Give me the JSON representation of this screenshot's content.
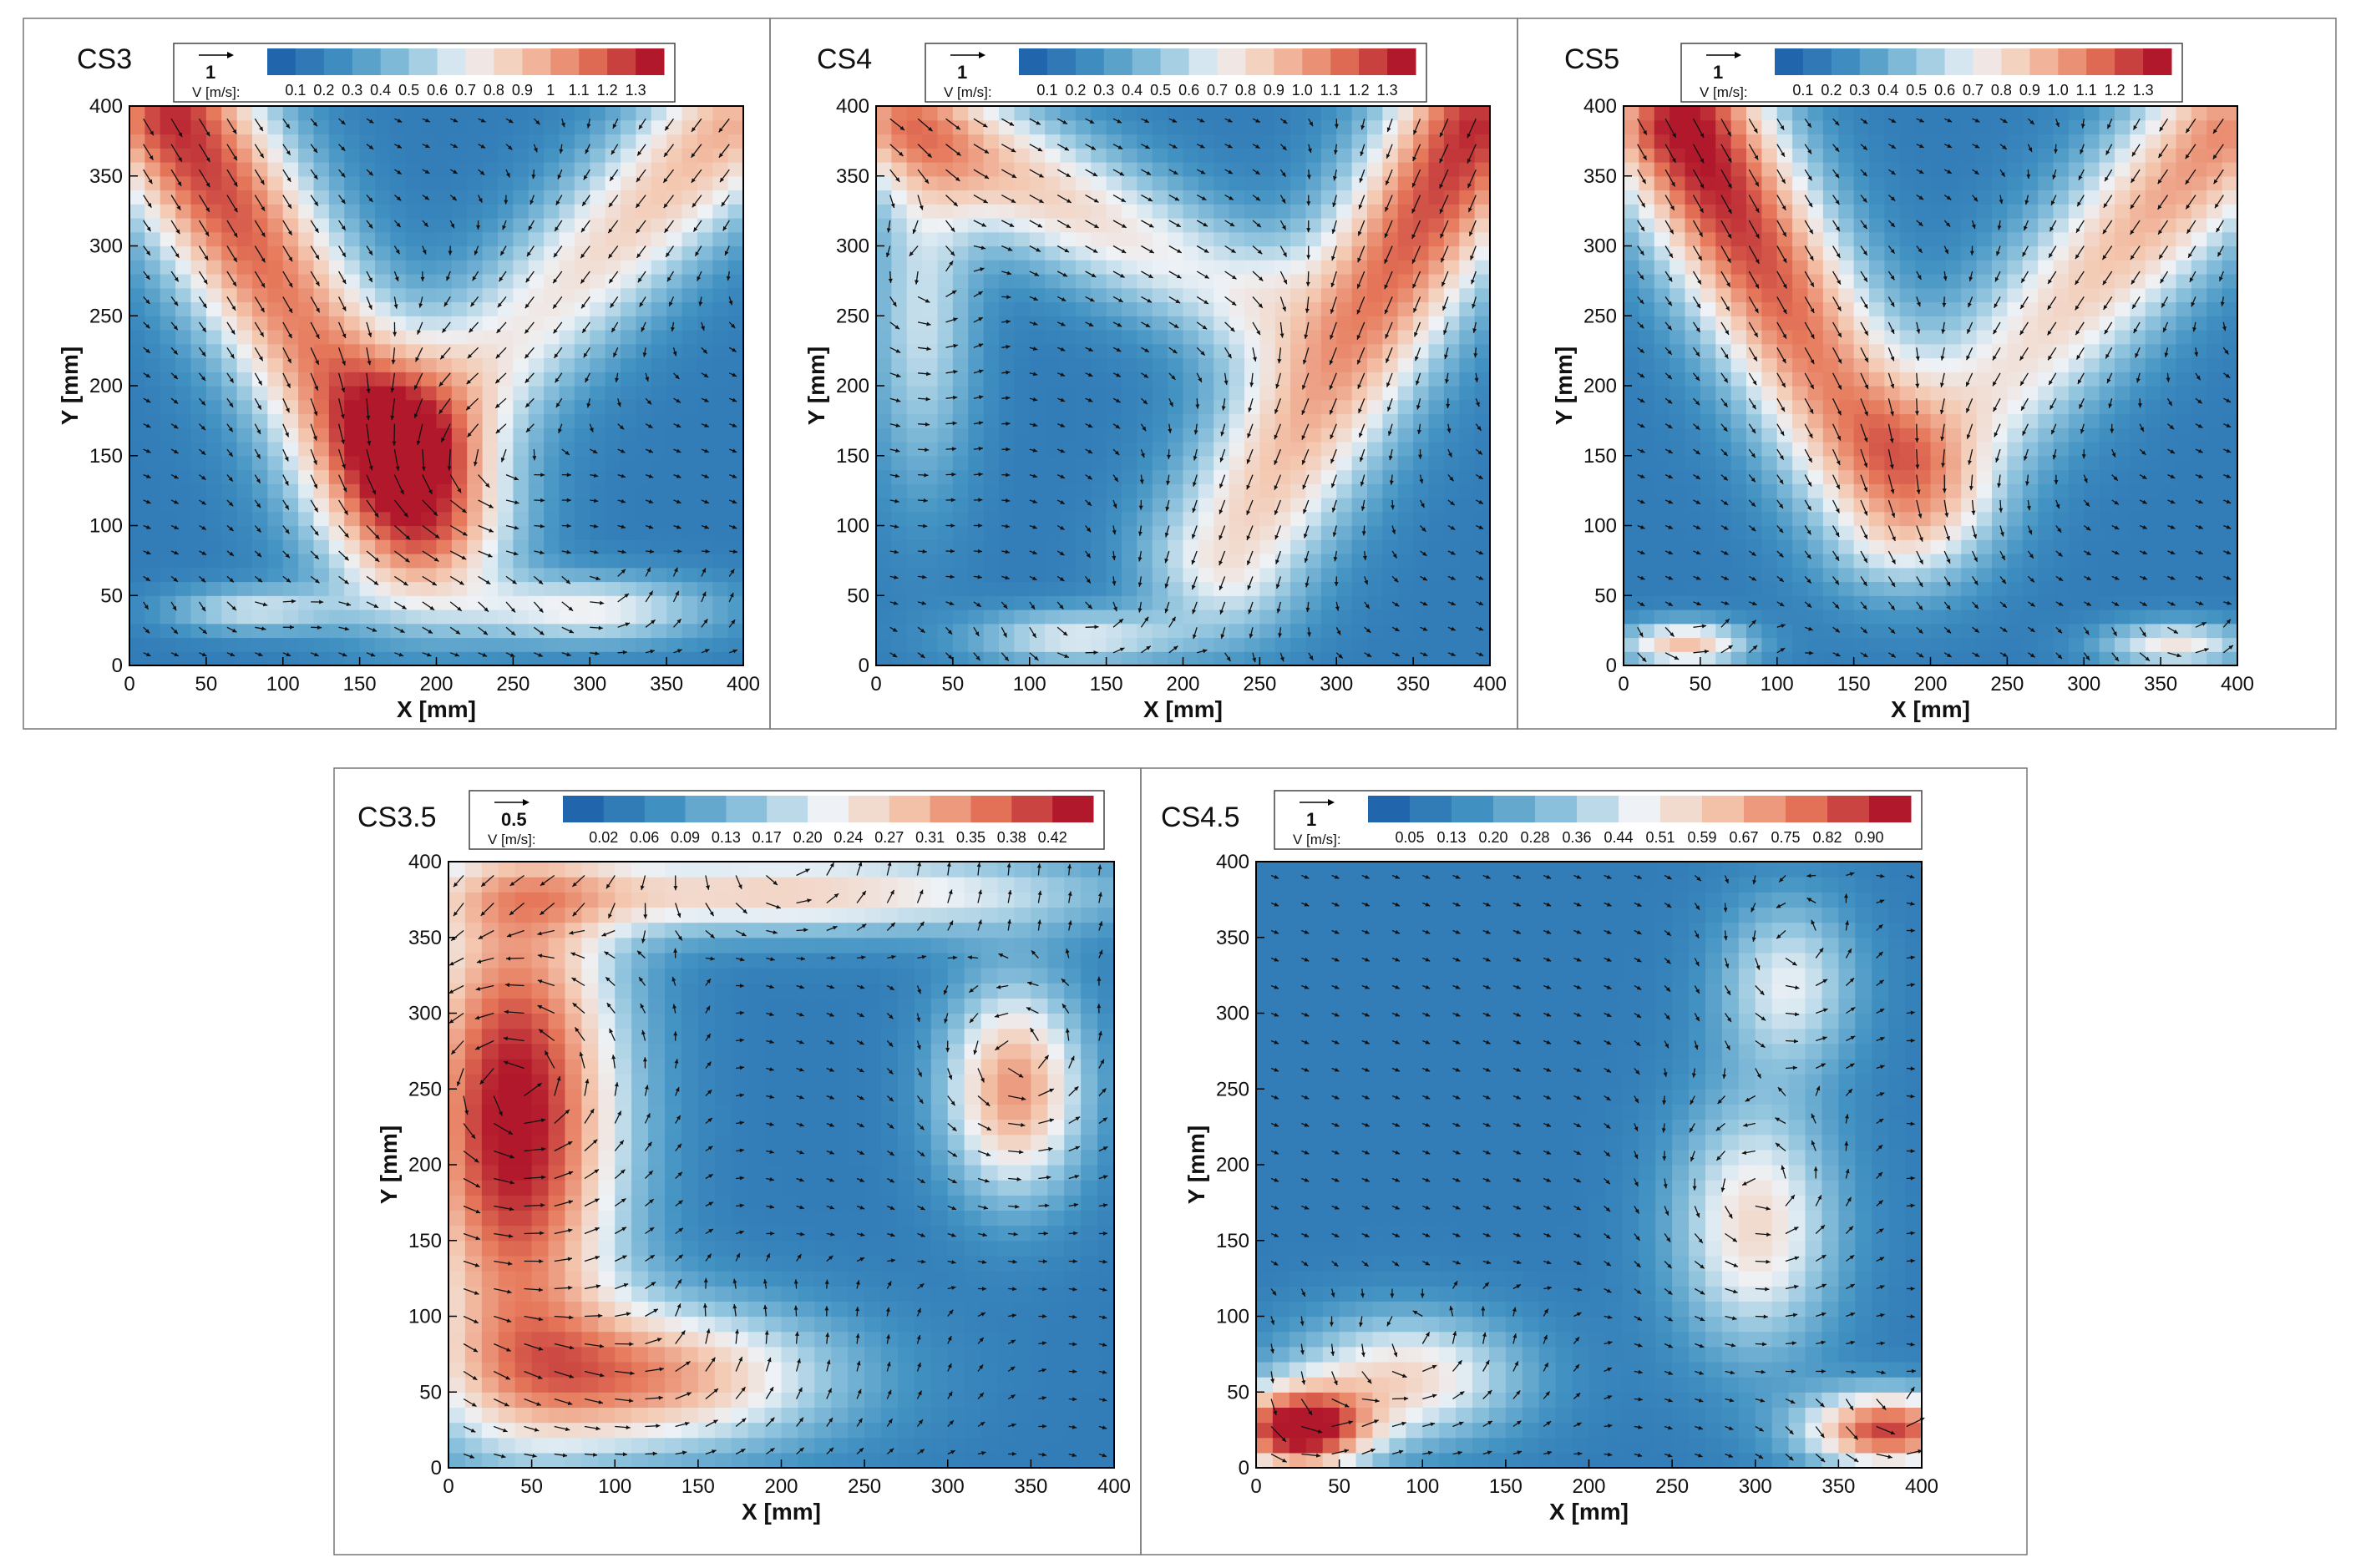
{
  "chart_data": [
    {
      "type": "heatmap",
      "title": "CS3",
      "xlabel": "X [mm]",
      "ylabel": "Y [mm]",
      "xlim": [
        0,
        400
      ],
      "ylim": [
        0,
        400
      ],
      "x_ticks": [
        "0",
        "50",
        "100",
        "150",
        "200",
        "250",
        "300",
        "350",
        "400"
      ],
      "y_ticks": [
        "0",
        "50",
        "100",
        "150",
        "200",
        "250",
        "300",
        "350",
        "400"
      ],
      "legend": {
        "vector_value": "1",
        "label": "V [m/s]:",
        "levels": [
          "0.1",
          "0.2",
          "0.3",
          "0.4",
          "0.5",
          "0.6",
          "0.7",
          "0.8",
          "0.9",
          "1",
          "1.1",
          "1.2",
          "1.3"
        ],
        "placement": "top"
      },
      "vmax": 1.3,
      "features": [
        {
          "kind": "jet",
          "x0": 30,
          "y0": 390,
          "x1": 190,
          "y1": 100,
          "width": 40,
          "peak": 1.15
        },
        {
          "kind": "jet",
          "x0": 390,
          "y0": 385,
          "x1": 200,
          "y1": 180,
          "width": 38,
          "peak": 0.8
        },
        {
          "kind": "blob",
          "x": 300,
          "y": 40,
          "sx": 60,
          "sy": 18,
          "peak": 0.55
        },
        {
          "kind": "blob",
          "x": 80,
          "y": 40,
          "sx": 40,
          "sy": 12,
          "peak": 0.45
        },
        {
          "kind": "blob",
          "x": 180,
          "y": 130,
          "sx": 45,
          "sy": 60,
          "peak": 0.55
        }
      ]
    },
    {
      "type": "heatmap",
      "title": "CS4",
      "xlabel": "X [mm]",
      "ylabel": "Y [mm]",
      "xlim": [
        0,
        400
      ],
      "ylim": [
        0,
        400
      ],
      "x_ticks": [
        "0",
        "50",
        "100",
        "150",
        "200",
        "250",
        "300",
        "350",
        "400"
      ],
      "y_ticks": [
        "0",
        "50",
        "100",
        "150",
        "200",
        "250",
        "300",
        "350",
        "400"
      ],
      "legend": {
        "vector_value": "1",
        "label": "V [m/s]:",
        "levels": [
          "0.1",
          "0.2",
          "0.3",
          "0.4",
          "0.5",
          "0.6",
          "0.7",
          "0.8",
          "0.9",
          "1.0",
          "1.1",
          "1.2",
          "1.3"
        ],
        "placement": "top"
      },
      "vmax": 1.3,
      "features": [
        {
          "kind": "jet",
          "x0": 20,
          "y0": 390,
          "x1": 230,
          "y1": 270,
          "width": 35,
          "peak": 0.85
        },
        {
          "kind": "jet",
          "x0": 390,
          "y0": 385,
          "x1": 230,
          "y1": 80,
          "width": 40,
          "peak": 1.15
        },
        {
          "kind": "blob",
          "x": 130,
          "y": 20,
          "sx": 50,
          "sy": 15,
          "peak": 0.5
        },
        {
          "kind": "blob",
          "x": 30,
          "y": 250,
          "sx": 25,
          "sy": 90,
          "peak": 0.45
        }
      ]
    },
    {
      "type": "heatmap",
      "title": "CS5",
      "xlabel": "X [mm]",
      "ylabel": "Y [mm]",
      "xlim": [
        0,
        400
      ],
      "ylim": [
        0,
        400
      ],
      "x_ticks": [
        "0",
        "50",
        "100",
        "150",
        "200",
        "250",
        "300",
        "350",
        "400"
      ],
      "y_ticks": [
        "0",
        "50",
        "100",
        "150",
        "200",
        "250",
        "300",
        "350",
        "400"
      ],
      "legend": {
        "vector_value": "1",
        "label": "V [m/s]:",
        "levels": [
          "0.1",
          "0.2",
          "0.3",
          "0.4",
          "0.5",
          "0.6",
          "0.7",
          "0.8",
          "0.9",
          "1.0",
          "1.1",
          "1.2",
          "1.3"
        ],
        "placement": "top"
      },
      "vmax": 1.3,
      "features": [
        {
          "kind": "jet",
          "x0": 40,
          "y0": 385,
          "x1": 180,
          "y1": 110,
          "width": 40,
          "peak": 1.25
        },
        {
          "kind": "jet",
          "x0": 390,
          "y0": 380,
          "x1": 210,
          "y1": 160,
          "width": 40,
          "peak": 0.9
        },
        {
          "kind": "blob",
          "x": 40,
          "y": 15,
          "sx": 30,
          "sy": 12,
          "peak": 0.75
        },
        {
          "kind": "blob",
          "x": 360,
          "y": 15,
          "sx": 35,
          "sy": 12,
          "peak": 0.6
        }
      ]
    },
    {
      "type": "heatmap",
      "title": "CS3.5",
      "xlabel": "X [mm]",
      "ylabel": "Y [mm]",
      "xlim": [
        0,
        400
      ],
      "ylim": [
        0,
        400
      ],
      "x_ticks": [
        "0",
        "50",
        "100",
        "150",
        "200",
        "250",
        "300",
        "350",
        "400"
      ],
      "y_ticks": [
        "0",
        "50",
        "100",
        "150",
        "200",
        "250",
        "300",
        "350",
        "400"
      ],
      "legend": {
        "vector_value": "0.5",
        "label": "V [m/s]:",
        "levels": [
          "0.02",
          "0.06",
          "0.09",
          "0.13",
          "0.17",
          "0.20",
          "0.24",
          "0.27",
          "0.31",
          "0.35",
          "0.38",
          "0.42"
        ],
        "placement": "top"
      },
      "vmax": 0.42,
      "features": [
        {
          "kind": "blob",
          "x": 40,
          "y": 230,
          "sx": 45,
          "sy": 120,
          "peak": 0.4
        },
        {
          "kind": "blob",
          "x": 120,
          "y": 60,
          "sx": 80,
          "sy": 35,
          "peak": 0.27
        },
        {
          "kind": "blob",
          "x": 340,
          "y": 250,
          "sx": 30,
          "sy": 50,
          "peak": 0.28
        },
        {
          "kind": "blob",
          "x": 200,
          "y": 380,
          "sx": 140,
          "sy": 20,
          "peak": 0.22
        }
      ]
    },
    {
      "type": "heatmap",
      "title": "CS4.5",
      "xlabel": "X [mm]",
      "ylabel": "Y [mm]",
      "xlim": [
        0,
        400
      ],
      "ylim": [
        0,
        400
      ],
      "x_ticks": [
        "0",
        "50",
        "100",
        "150",
        "200",
        "250",
        "300",
        "350",
        "400"
      ],
      "y_ticks": [
        "0",
        "50",
        "100",
        "150",
        "200",
        "250",
        "300",
        "350",
        "400"
      ],
      "legend": {
        "vector_value": "1",
        "label": "V [m/s]:",
        "levels": [
          "0.05",
          "0.13",
          "0.20",
          "0.28",
          "0.36",
          "0.44",
          "0.51",
          "0.59",
          "0.67",
          "0.75",
          "0.82",
          "0.90"
        ],
        "placement": "top"
      },
      "vmax": 0.9,
      "features": [
        {
          "kind": "blob",
          "x": 25,
          "y": 25,
          "sx": 30,
          "sy": 20,
          "peak": 0.85
        },
        {
          "kind": "blob",
          "x": 380,
          "y": 25,
          "sx": 35,
          "sy": 18,
          "peak": 0.75
        },
        {
          "kind": "blob",
          "x": 300,
          "y": 160,
          "sx": 35,
          "sy": 60,
          "peak": 0.45
        },
        {
          "kind": "blob",
          "x": 90,
          "y": 60,
          "sx": 50,
          "sy": 30,
          "peak": 0.45
        },
        {
          "kind": "blob",
          "x": 320,
          "y": 320,
          "sx": 30,
          "sy": 40,
          "peak": 0.35
        }
      ]
    }
  ]
}
